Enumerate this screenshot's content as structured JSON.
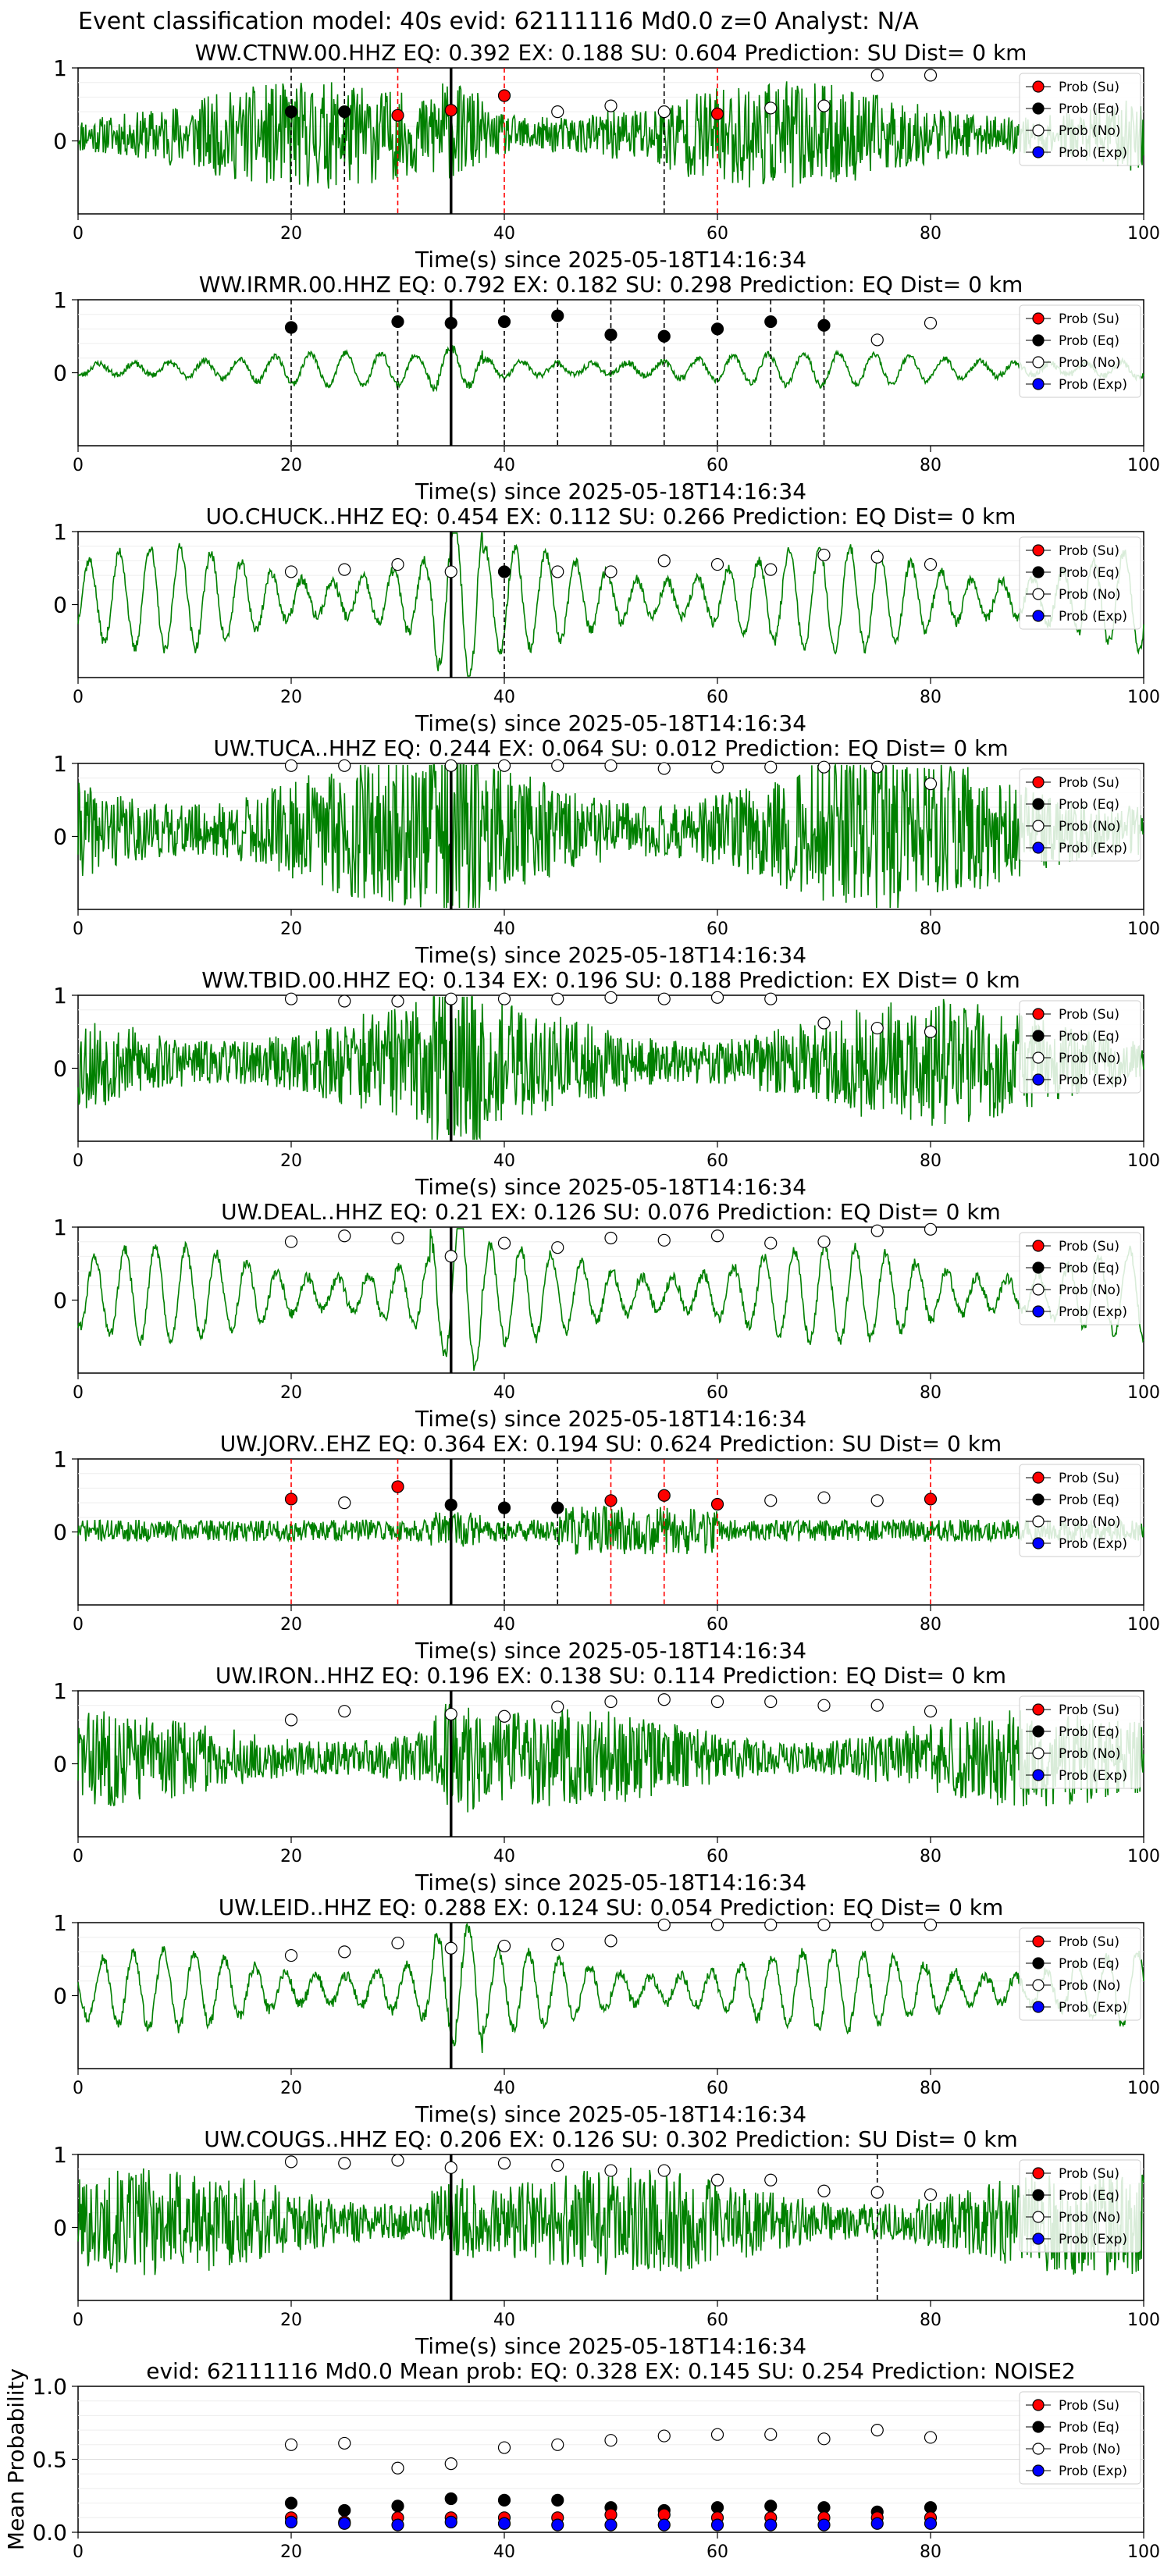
{
  "figure": {
    "suptitle": "Event classification model: 40s evid: 62111116 Md0.0 z=0 Analyst: N/A"
  },
  "legend_entries": [
    "Prob (Su)",
    "Prob (Eq)",
    "Prob (No)",
    "Prob (Exp)"
  ],
  "colors": {
    "trace": "#008000",
    "su": "#ff0000",
    "eq": "#000000",
    "no": "#ffffff",
    "exp": "#0000ff",
    "su_line": "#ff0000",
    "eq_line": "#000000",
    "pick_line": "#000000"
  },
  "chart_data": [
    {
      "type": "line",
      "title": "WW.CTNW.00.HHZ   EQ: 0.392  EX: 0.188  SU: 0.604   Prediction: SU    Dist= 0 km",
      "xlabel": "Time(s) since 2025-05-18T14:16:34",
      "xlim": [
        0,
        100
      ],
      "ylim": [
        -1,
        1
      ],
      "xticks": [
        "0",
        "20",
        "40",
        "60",
        "80",
        "100"
      ],
      "yticks": [
        "0",
        "1"
      ],
      "pick_time": 35,
      "noise": "high",
      "amp": 0.55,
      "seed": 11,
      "points": [
        {
          "t": 20,
          "v": 0.4,
          "c": "eq",
          "line": "eq"
        },
        {
          "t": 25,
          "v": 0.4,
          "c": "eq",
          "line": "eq"
        },
        {
          "t": 30,
          "v": 0.35,
          "c": "su",
          "line": "su"
        },
        {
          "t": 35,
          "v": 0.42,
          "c": "su",
          "line": "su"
        },
        {
          "t": 40,
          "v": 0.62,
          "c": "su",
          "line": "su"
        },
        {
          "t": 45,
          "v": 0.4,
          "c": "no"
        },
        {
          "t": 50,
          "v": 0.48,
          "c": "no"
        },
        {
          "t": 55,
          "v": 0.4,
          "c": "no",
          "line": "eq"
        },
        {
          "t": 60,
          "v": 0.37,
          "c": "su",
          "line": "su"
        },
        {
          "t": 65,
          "v": 0.45,
          "c": "no"
        },
        {
          "t": 70,
          "v": 0.48,
          "c": "no"
        },
        {
          "t": 75,
          "v": 0.9,
          "c": "no"
        },
        {
          "t": 80,
          "v": 0.9,
          "c": "no"
        }
      ]
    },
    {
      "type": "line",
      "title": "WW.IRMR.00.HHZ   EQ: 0.792  EX: 0.182  SU: 0.298   Prediction: EQ    Dist= 0 km",
      "xlabel": "Time(s) since 2025-05-18T14:16:34",
      "xlim": [
        0,
        100
      ],
      "ylim": [
        -1,
        1
      ],
      "xticks": [
        "0",
        "20",
        "40",
        "60",
        "80",
        "100"
      ],
      "yticks": [
        "0",
        "1"
      ],
      "pick_time": 35,
      "noise": "smooth",
      "amp": 0.25,
      "seed": 23,
      "points": [
        {
          "t": 20,
          "v": 0.62,
          "c": "eq",
          "line": "eq"
        },
        {
          "t": 30,
          "v": 0.7,
          "c": "eq",
          "line": "eq"
        },
        {
          "t": 35,
          "v": 0.68,
          "c": "eq",
          "line": "eq"
        },
        {
          "t": 40,
          "v": 0.7,
          "c": "eq",
          "line": "eq"
        },
        {
          "t": 45,
          "v": 0.78,
          "c": "eq",
          "line": "eq"
        },
        {
          "t": 50,
          "v": 0.52,
          "c": "eq",
          "line": "eq"
        },
        {
          "t": 55,
          "v": 0.5,
          "c": "eq",
          "line": "eq"
        },
        {
          "t": 60,
          "v": 0.6,
          "c": "eq",
          "line": "eq"
        },
        {
          "t": 65,
          "v": 0.7,
          "c": "eq",
          "line": "eq"
        },
        {
          "t": 70,
          "v": 0.65,
          "c": "eq",
          "line": "eq"
        },
        {
          "t": 75,
          "v": 0.45,
          "c": "no"
        },
        {
          "t": 80,
          "v": 0.68,
          "c": "no"
        }
      ]
    },
    {
      "type": "line",
      "title": "UO.CHUCK..HHZ   EQ: 0.454  EX: 0.112  SU: 0.266   Prediction: EQ    Dist= 0 km",
      "xlabel": "Time(s) since 2025-05-18T14:16:34",
      "xlim": [
        0,
        100
      ],
      "ylim": [
        -1,
        1
      ],
      "xticks": [
        "0",
        "20",
        "40",
        "60",
        "80",
        "100"
      ],
      "yticks": [
        "0",
        "1"
      ],
      "pick_time": 35,
      "noise": "osc",
      "amp": 0.6,
      "seed": 37,
      "points": [
        {
          "t": 20,
          "v": 0.45,
          "c": "no"
        },
        {
          "t": 25,
          "v": 0.48,
          "c": "no"
        },
        {
          "t": 30,
          "v": 0.55,
          "c": "no"
        },
        {
          "t": 35,
          "v": 0.45,
          "c": "no"
        },
        {
          "t": 40,
          "v": 0.45,
          "c": "eq",
          "line": "eq"
        },
        {
          "t": 45,
          "v": 0.45,
          "c": "no"
        },
        {
          "t": 50,
          "v": 0.45,
          "c": "no"
        },
        {
          "t": 55,
          "v": 0.6,
          "c": "no"
        },
        {
          "t": 60,
          "v": 0.55,
          "c": "no"
        },
        {
          "t": 65,
          "v": 0.48,
          "c": "no"
        },
        {
          "t": 70,
          "v": 0.68,
          "c": "no"
        },
        {
          "t": 75,
          "v": 0.65,
          "c": "no"
        },
        {
          "t": 80,
          "v": 0.55,
          "c": "no"
        }
      ]
    },
    {
      "type": "line",
      "title": "UW.TUCA..HHZ   EQ: 0.244  EX: 0.064  SU: 0.012   Prediction: EQ    Dist= 0 km",
      "xlabel": "Time(s) since 2025-05-18T14:16:34",
      "xlim": [
        0,
        100
      ],
      "ylim": [
        -1,
        1
      ],
      "xticks": [
        "0",
        "20",
        "40",
        "60",
        "80",
        "100"
      ],
      "yticks": [
        "0",
        "1"
      ],
      "pick_time": 35,
      "noise": "high",
      "amp": 0.8,
      "seed": 41,
      "points": [
        {
          "t": 20,
          "v": 0.97,
          "c": "no"
        },
        {
          "t": 25,
          "v": 0.97,
          "c": "no"
        },
        {
          "t": 35,
          "v": 0.97,
          "c": "no"
        },
        {
          "t": 40,
          "v": 0.97,
          "c": "no"
        },
        {
          "t": 45,
          "v": 0.97,
          "c": "no"
        },
        {
          "t": 50,
          "v": 0.97,
          "c": "no"
        },
        {
          "t": 55,
          "v": 0.93,
          "c": "no"
        },
        {
          "t": 60,
          "v": 0.95,
          "c": "no"
        },
        {
          "t": 65,
          "v": 0.95,
          "c": "no"
        },
        {
          "t": 70,
          "v": 0.95,
          "c": "no"
        },
        {
          "t": 75,
          "v": 0.95,
          "c": "no"
        },
        {
          "t": 80,
          "v": 0.72,
          "c": "no"
        }
      ]
    },
    {
      "type": "line",
      "title": "WW.TBID.00.HHZ   EQ: 0.134  EX: 0.196  SU: 0.188   Prediction: EX    Dist= 0 km",
      "xlabel": "Time(s) since 2025-05-18T14:16:34",
      "xlim": [
        0,
        100
      ],
      "ylim": [
        -1,
        1
      ],
      "xticks": [
        "0",
        "20",
        "40",
        "60",
        "80",
        "100"
      ],
      "yticks": [
        "0",
        "1"
      ],
      "pick_time": 35,
      "noise": "high",
      "amp": 0.65,
      "seed": 53,
      "points": [
        {
          "t": 20,
          "v": 0.95,
          "c": "no"
        },
        {
          "t": 25,
          "v": 0.92,
          "c": "no"
        },
        {
          "t": 30,
          "v": 0.92,
          "c": "no"
        },
        {
          "t": 35,
          "v": 0.95,
          "c": "no"
        },
        {
          "t": 40,
          "v": 0.95,
          "c": "no"
        },
        {
          "t": 45,
          "v": 0.95,
          "c": "no"
        },
        {
          "t": 50,
          "v": 0.97,
          "c": "no"
        },
        {
          "t": 55,
          "v": 0.95,
          "c": "no"
        },
        {
          "t": 60,
          "v": 0.97,
          "c": "no"
        },
        {
          "t": 65,
          "v": 0.95,
          "c": "no"
        },
        {
          "t": 70,
          "v": 0.62,
          "c": "no"
        },
        {
          "t": 75,
          "v": 0.55,
          "c": "no"
        },
        {
          "t": 80,
          "v": 0.5,
          "c": "no"
        }
      ]
    },
    {
      "type": "line",
      "title": "UW.DEAL..HHZ   EQ: 0.21  EX: 0.126  SU: 0.076   Prediction: EQ    Dist= 0 km",
      "xlabel": "Time(s) since 2025-05-18T14:16:34",
      "xlim": [
        0,
        100
      ],
      "ylim": [
        -1,
        1
      ],
      "xticks": [
        "0",
        "20",
        "40",
        "60",
        "80",
        "100"
      ],
      "yticks": [
        "0",
        "1"
      ],
      "pick_time": 35,
      "noise": "osc",
      "amp": 0.55,
      "seed": 61,
      "points": [
        {
          "t": 20,
          "v": 0.8,
          "c": "no"
        },
        {
          "t": 25,
          "v": 0.88,
          "c": "no"
        },
        {
          "t": 30,
          "v": 0.85,
          "c": "no"
        },
        {
          "t": 35,
          "v": 0.6,
          "c": "no"
        },
        {
          "t": 40,
          "v": 0.78,
          "c": "no"
        },
        {
          "t": 45,
          "v": 0.72,
          "c": "no"
        },
        {
          "t": 50,
          "v": 0.85,
          "c": "no"
        },
        {
          "t": 55,
          "v": 0.82,
          "c": "no"
        },
        {
          "t": 60,
          "v": 0.88,
          "c": "no"
        },
        {
          "t": 65,
          "v": 0.78,
          "c": "no"
        },
        {
          "t": 70,
          "v": 0.8,
          "c": "no"
        },
        {
          "t": 75,
          "v": 0.95,
          "c": "no"
        },
        {
          "t": 80,
          "v": 0.97,
          "c": "no"
        }
      ]
    },
    {
      "type": "line",
      "title": "UW.JORV..EHZ   EQ: 0.364  EX: 0.194  SU: 0.624   Prediction: SU    Dist= 0 km",
      "xlabel": "Time(s) since 2025-05-18T14:16:34",
      "xlim": [
        0,
        100
      ],
      "ylim": [
        -1,
        1
      ],
      "xticks": [
        "0",
        "20",
        "40",
        "60",
        "80",
        "100"
      ],
      "yticks": [
        "0",
        "1"
      ],
      "pick_time": 35,
      "noise": "quiet",
      "amp": 0.15,
      "seed": 71,
      "points": [
        {
          "t": 20,
          "v": 0.45,
          "c": "su",
          "line": "su"
        },
        {
          "t": 25,
          "v": 0.4,
          "c": "no"
        },
        {
          "t": 30,
          "v": 0.62,
          "c": "su",
          "line": "su"
        },
        {
          "t": 35,
          "v": 0.37,
          "c": "eq"
        },
        {
          "t": 40,
          "v": 0.33,
          "c": "eq",
          "line": "eq"
        },
        {
          "t": 45,
          "v": 0.33,
          "c": "eq",
          "line": "eq"
        },
        {
          "t": 50,
          "v": 0.43,
          "c": "su",
          "line": "su"
        },
        {
          "t": 55,
          "v": 0.5,
          "c": "su",
          "line": "su"
        },
        {
          "t": 60,
          "v": 0.38,
          "c": "su",
          "line": "su"
        },
        {
          "t": 65,
          "v": 0.43,
          "c": "no"
        },
        {
          "t": 70,
          "v": 0.47,
          "c": "no"
        },
        {
          "t": 75,
          "v": 0.43,
          "c": "no"
        },
        {
          "t": 80,
          "v": 0.45,
          "c": "su",
          "line": "su"
        }
      ]
    },
    {
      "type": "line",
      "title": "UW.IRON..HHZ   EQ: 0.196  EX: 0.138  SU: 0.114   Prediction: EQ    Dist= 0 km",
      "xlabel": "Time(s) since 2025-05-18T14:16:34",
      "xlim": [
        0,
        100
      ],
      "ylim": [
        -1,
        1
      ],
      "xticks": [
        "0",
        "20",
        "40",
        "60",
        "80",
        "100"
      ],
      "yticks": [
        "0",
        "1"
      ],
      "pick_time": 35,
      "noise": "high",
      "amp": 0.5,
      "seed": 83,
      "points": [
        {
          "t": 20,
          "v": 0.6,
          "c": "no"
        },
        {
          "t": 25,
          "v": 0.72,
          "c": "no"
        },
        {
          "t": 35,
          "v": 0.68,
          "c": "no"
        },
        {
          "t": 40,
          "v": 0.65,
          "c": "no"
        },
        {
          "t": 45,
          "v": 0.78,
          "c": "no"
        },
        {
          "t": 50,
          "v": 0.85,
          "c": "no"
        },
        {
          "t": 55,
          "v": 0.88,
          "c": "no"
        },
        {
          "t": 60,
          "v": 0.85,
          "c": "no"
        },
        {
          "t": 65,
          "v": 0.85,
          "c": "no"
        },
        {
          "t": 70,
          "v": 0.8,
          "c": "no"
        },
        {
          "t": 75,
          "v": 0.8,
          "c": "no"
        },
        {
          "t": 80,
          "v": 0.72,
          "c": "no"
        }
      ]
    },
    {
      "type": "line",
      "title": "UW.LEID..HHZ   EQ: 0.288  EX: 0.124  SU: 0.054   Prediction: EQ    Dist= 0 km",
      "xlabel": "Time(s) since 2025-05-18T14:16:34",
      "xlim": [
        0,
        100
      ],
      "ylim": [
        -1,
        1
      ],
      "xticks": [
        "0",
        "20",
        "40",
        "60",
        "80",
        "100"
      ],
      "yticks": [
        "0",
        "1"
      ],
      "pick_time": 35,
      "noise": "osc",
      "amp": 0.45,
      "seed": 97,
      "points": [
        {
          "t": 20,
          "v": 0.55,
          "c": "no"
        },
        {
          "t": 25,
          "v": 0.6,
          "c": "no"
        },
        {
          "t": 30,
          "v": 0.72,
          "c": "no"
        },
        {
          "t": 35,
          "v": 0.65,
          "c": "no"
        },
        {
          "t": 40,
          "v": 0.68,
          "c": "no"
        },
        {
          "t": 45,
          "v": 0.7,
          "c": "no"
        },
        {
          "t": 50,
          "v": 0.75,
          "c": "no"
        },
        {
          "t": 55,
          "v": 0.97,
          "c": "no"
        },
        {
          "t": 60,
          "v": 0.97,
          "c": "no"
        },
        {
          "t": 65,
          "v": 0.97,
          "c": "no"
        },
        {
          "t": 70,
          "v": 0.97,
          "c": "no"
        },
        {
          "t": 75,
          "v": 0.97,
          "c": "no"
        },
        {
          "t": 80,
          "v": 0.97,
          "c": "no"
        }
      ]
    },
    {
      "type": "line",
      "title": "UW.COUGS..HHZ   EQ: 0.206  EX: 0.126  SU: 0.302   Prediction: SU    Dist= 0 km",
      "xlabel": "Time(s) since 2025-05-18T14:16:34",
      "xlim": [
        0,
        100
      ],
      "ylim": [
        -1,
        1
      ],
      "xticks": [
        "0",
        "20",
        "40",
        "60",
        "80",
        "100"
      ],
      "yticks": [
        "0",
        "1"
      ],
      "pick_time": 35,
      "noise": "high",
      "amp": 0.55,
      "seed": 101,
      "points": [
        {
          "t": 20,
          "v": 0.9,
          "c": "no"
        },
        {
          "t": 25,
          "v": 0.88,
          "c": "no"
        },
        {
          "t": 30,
          "v": 0.92,
          "c": "no"
        },
        {
          "t": 35,
          "v": 0.82,
          "c": "no"
        },
        {
          "t": 40,
          "v": 0.88,
          "c": "no"
        },
        {
          "t": 45,
          "v": 0.85,
          "c": "no"
        },
        {
          "t": 50,
          "v": 0.78,
          "c": "no"
        },
        {
          "t": 55,
          "v": 0.78,
          "c": "no"
        },
        {
          "t": 60,
          "v": 0.65,
          "c": "no"
        },
        {
          "t": 65,
          "v": 0.65,
          "c": "no"
        },
        {
          "t": 70,
          "v": 0.5,
          "c": "no"
        },
        {
          "t": 75,
          "v": 0.48,
          "c": "no",
          "line": "eq"
        },
        {
          "t": 80,
          "v": 0.45,
          "c": "no"
        }
      ]
    },
    {
      "type": "scatter",
      "title": "evid: 62111116  Md0.0   Mean prob:   EQ: 0.328  EX: 0.145  SU: 0.254   Prediction: NOISE2",
      "ylabel": "Mean Probability",
      "xlim": [
        0,
        100
      ],
      "ylim": [
        0,
        1
      ],
      "xticks": [
        "0",
        "20",
        "40",
        "60",
        "80",
        "100"
      ],
      "yticks": [
        "0.0",
        "0.5",
        "1.0"
      ],
      "grid": true,
      "legend": "top-right",
      "x": [
        20,
        25,
        30,
        35,
        40,
        45,
        50,
        55,
        60,
        65,
        70,
        75,
        80
      ],
      "series": [
        {
          "name": "Prob (Su)",
          "key": "su",
          "values": [
            0.1,
            0.07,
            0.1,
            0.1,
            0.1,
            0.1,
            0.12,
            0.12,
            0.1,
            0.1,
            0.1,
            0.1,
            0.1
          ]
        },
        {
          "name": "Prob (Eq)",
          "key": "eq",
          "values": [
            0.2,
            0.15,
            0.18,
            0.23,
            0.22,
            0.22,
            0.17,
            0.15,
            0.17,
            0.18,
            0.17,
            0.14,
            0.17
          ]
        },
        {
          "name": "Prob (No)",
          "key": "no",
          "values": [
            0.6,
            0.61,
            0.44,
            0.47,
            0.58,
            0.6,
            0.63,
            0.66,
            0.67,
            0.67,
            0.64,
            0.7,
            0.65
          ]
        },
        {
          "name": "Prob (Exp)",
          "key": "exp",
          "values": [
            0.07,
            0.06,
            0.05,
            0.07,
            0.06,
            0.05,
            0.05,
            0.05,
            0.05,
            0.05,
            0.05,
            0.06,
            0.06
          ]
        }
      ]
    }
  ]
}
